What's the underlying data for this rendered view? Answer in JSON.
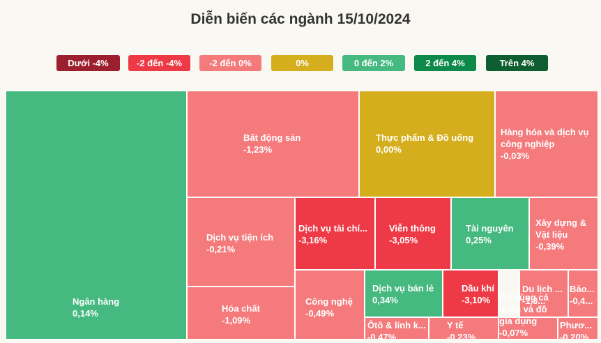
{
  "colors": {
    "below_neg4": "#9c1f2e",
    "neg2_neg4": "#ee3a47",
    "neg2_0": "#f47a7c",
    "zero": "#d4ae1c",
    "zero_2": "#45b980",
    "two_4": "#0d8a4a",
    "above_4": "#0f5e31"
  },
  "chart_data": {
    "type": "treemap",
    "title": "Diễn biến các ngành 15/10/2024",
    "legend": [
      {
        "label": "Dưới -4%",
        "color": "#9c1f2e"
      },
      {
        "label": "-2 đến -4%",
        "color": "#ee3a47"
      },
      {
        "label": "-2 đến 0%",
        "color": "#f47a7c"
      },
      {
        "label": "0%",
        "color": "#d4ae1c"
      },
      {
        "label": "0 đến 2%",
        "color": "#45b980"
      },
      {
        "label": "2 đến 4%",
        "color": "#0d8a4a"
      },
      {
        "label": "Trên 4%",
        "color": "#0f5e31"
      }
    ],
    "sectors": [
      {
        "name": "Ngân hàng",
        "value": "0,14%",
        "change": 0.14
      },
      {
        "name": "Bất động sản",
        "value": "-1,23%",
        "change": -1.23
      },
      {
        "name": "Thực phẩm & Đồ uống",
        "value": "0,00%",
        "change": 0.0
      },
      {
        "name": "Hàng hóa và dịch vụ công nghiệp",
        "value": "-0,03%",
        "change": -0.03
      },
      {
        "name": "Dịch vụ tiện ích",
        "value": "-0,21%",
        "change": -0.21
      },
      {
        "name": "Dịch vụ tài chí...",
        "value": "-3,16%",
        "change": -3.16
      },
      {
        "name": "Viễn thông",
        "value": "-3,05%",
        "change": -3.05
      },
      {
        "name": "Tài nguyên",
        "value": "0,25%",
        "change": 0.25
      },
      {
        "name": "Xây dựng & Vật liệu",
        "value": "-0,39%",
        "change": -0.39
      },
      {
        "name": "Hóa chất",
        "value": "-1,09%",
        "change": -1.09
      },
      {
        "name": "Công nghệ",
        "value": "-0,49%",
        "change": -0.49
      },
      {
        "name": "Dịch vụ bán lẻ",
        "value": "0,34%",
        "change": 0.34
      },
      {
        "name": "Dầu khí",
        "value": "-3,10%",
        "change": -3.1
      },
      {
        "name": "Du lịch ...",
        "value": "-1,3...",
        "change": -1.3
      },
      {
        "name": "Bảo...",
        "value": "-0,4...",
        "change": -0.4
      },
      {
        "name": "Đồ dùng cá nhân và đồ gia dụng",
        "value": "-0,07%",
        "change": -0.07
      },
      {
        "name": "Ôtô & linh k...",
        "value": "-0,47%",
        "change": -0.47
      },
      {
        "name": "Y tế",
        "value": "-0,23%",
        "change": -0.23
      },
      {
        "name": "Phươ...",
        "value": "-0,20%",
        "change": -0.2
      }
    ]
  }
}
